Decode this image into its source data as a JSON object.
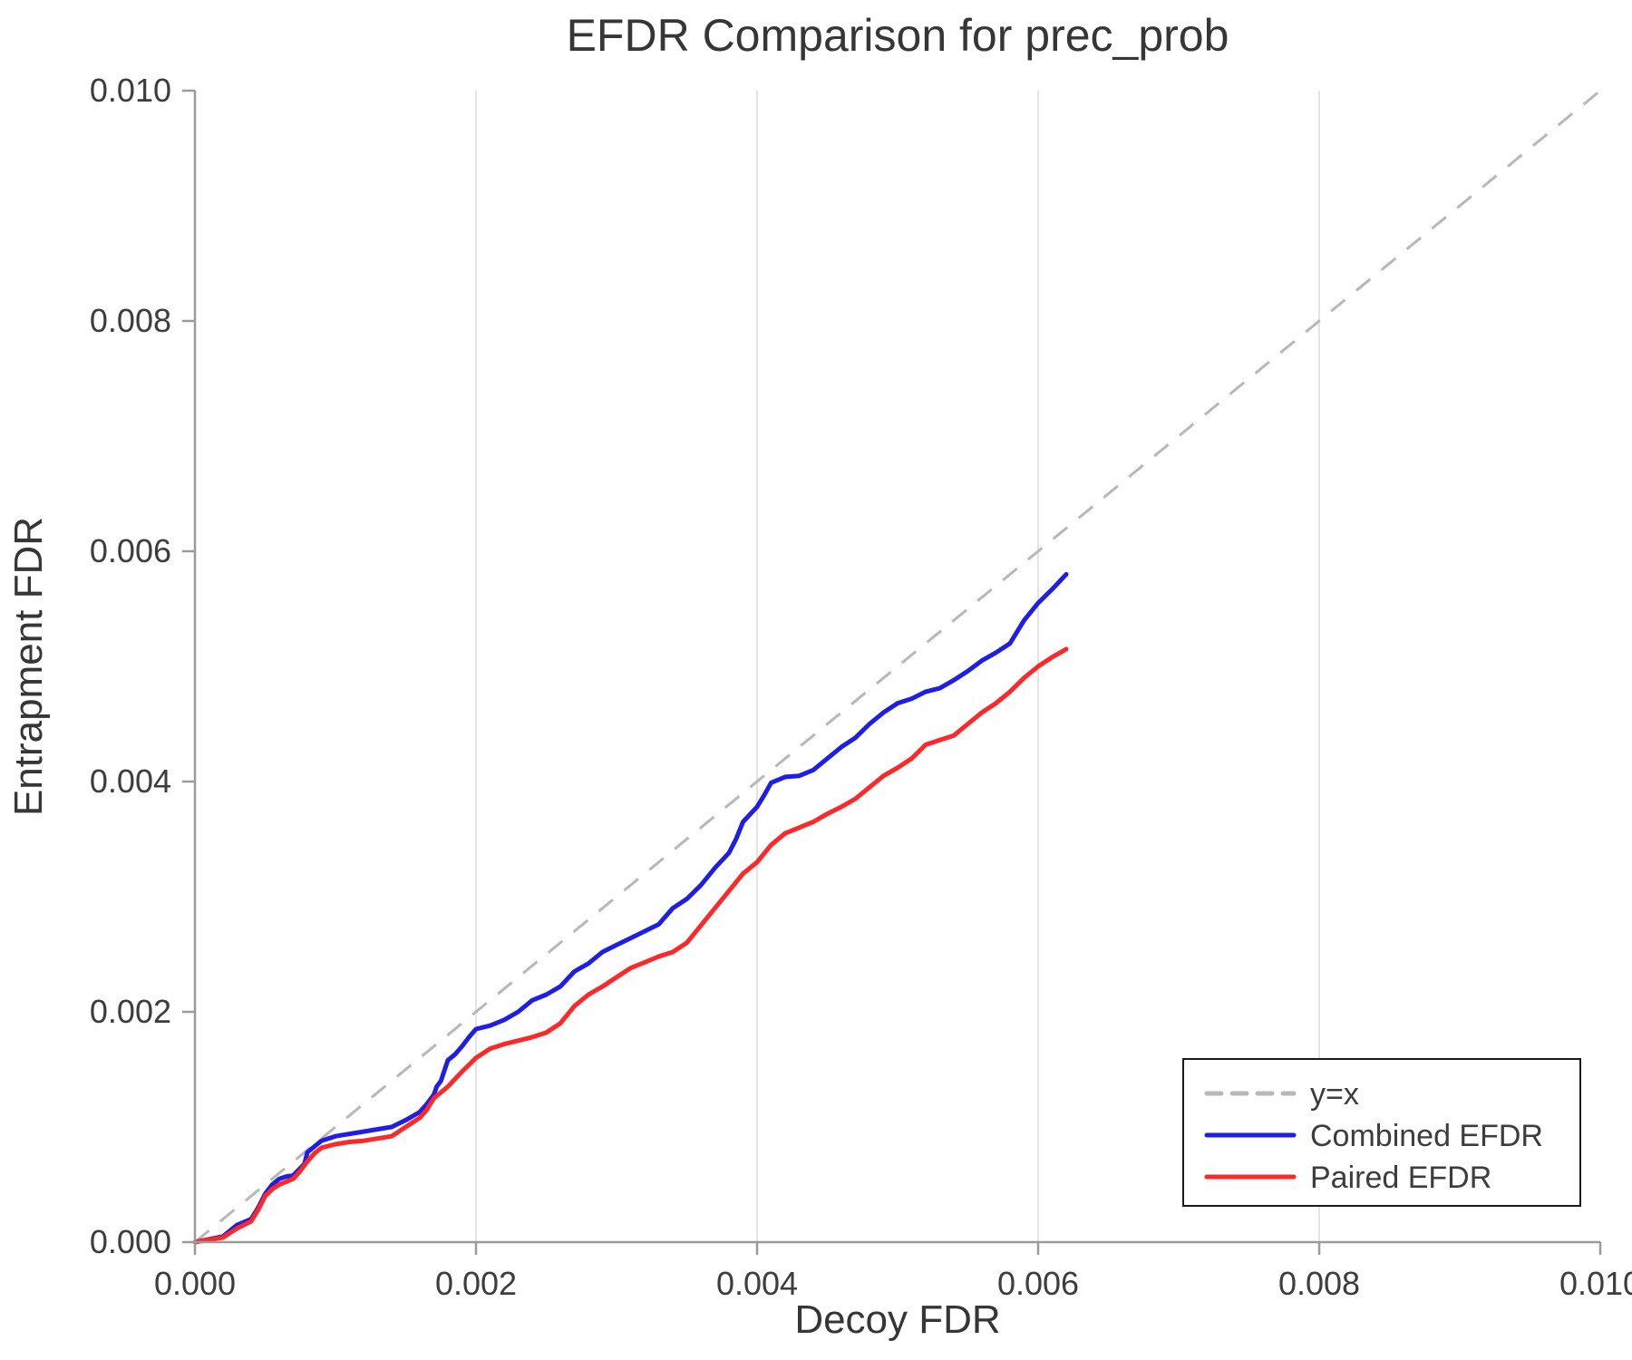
{
  "chart_data": {
    "type": "line",
    "title": "EFDR Comparison for prec_prob",
    "xlabel": "Decoy FDR",
    "ylabel": "Entrapment FDR",
    "xlim": [
      0.0,
      0.01
    ],
    "ylim": [
      0.0,
      0.01
    ],
    "xticks": [
      0.0,
      0.002,
      0.004,
      0.006,
      0.008,
      0.01
    ],
    "yticks": [
      0.0,
      0.002,
      0.004,
      0.006,
      0.008,
      0.01
    ],
    "tick_decimals": 3,
    "grid": "vertical",
    "grid_color": "#e4e4e4",
    "axis_color": "#9b9b9b",
    "text_color": "#3d3d3d",
    "legend_position": "lower right",
    "reference_line": {
      "label": "y=x",
      "color": "#b8b8b8",
      "style": "dashed",
      "from": [
        0.0,
        0.0
      ],
      "to": [
        0.01,
        0.01
      ]
    },
    "series": [
      {
        "name": "Combined EFDR",
        "color": "#1e1ee6",
        "x": [
          0.0,
          0.0002,
          0.00025,
          0.0003,
          0.0004,
          0.00045,
          0.0005,
          0.00055,
          0.0006,
          0.00065,
          0.0007,
          0.00078,
          0.0008,
          0.00085,
          0.0009,
          0.001,
          0.0011,
          0.0012,
          0.0013,
          0.0014,
          0.0015,
          0.0016,
          0.00165,
          0.0017,
          0.00172,
          0.00175,
          0.0018,
          0.00185,
          0.0019,
          0.00195,
          0.002,
          0.0021,
          0.0022,
          0.0023,
          0.0024,
          0.0025,
          0.0026,
          0.0027,
          0.0028,
          0.0029,
          0.003,
          0.0031,
          0.0032,
          0.0033,
          0.0034,
          0.0035,
          0.0036,
          0.0037,
          0.0038,
          0.00385,
          0.0039,
          0.004,
          0.00405,
          0.0041,
          0.0042,
          0.0043,
          0.0044,
          0.0045,
          0.0046,
          0.0047,
          0.0048,
          0.0049,
          0.005,
          0.0051,
          0.0052,
          0.0053,
          0.0054,
          0.0055,
          0.0056,
          0.0057,
          0.0058,
          0.0059,
          0.006,
          0.0061,
          0.0062
        ],
        "y": [
          0.0,
          5e-05,
          0.0001,
          0.00015,
          0.0002,
          0.0003,
          0.00042,
          0.0005,
          0.00055,
          0.00057,
          0.00058,
          0.00068,
          0.00078,
          0.00083,
          0.00088,
          0.00092,
          0.00094,
          0.00096,
          0.00098,
          0.001,
          0.00106,
          0.00113,
          0.0012,
          0.00128,
          0.00135,
          0.0014,
          0.00158,
          0.00163,
          0.0017,
          0.00178,
          0.00185,
          0.00188,
          0.00193,
          0.002,
          0.0021,
          0.00215,
          0.00222,
          0.00235,
          0.00242,
          0.00252,
          0.00258,
          0.00264,
          0.0027,
          0.00276,
          0.0029,
          0.00298,
          0.0031,
          0.00325,
          0.00338,
          0.0035,
          0.00365,
          0.00378,
          0.00388,
          0.00399,
          0.00404,
          0.00405,
          0.0041,
          0.0042,
          0.0043,
          0.00438,
          0.0045,
          0.0046,
          0.00468,
          0.00472,
          0.00478,
          0.00481,
          0.00488,
          0.00496,
          0.00505,
          0.00512,
          0.0052,
          0.0054,
          0.00555,
          0.00567,
          0.0058
        ]
      },
      {
        "name": "Paired EFDR",
        "color": "#ff2828",
        "x": [
          0.0,
          0.0002,
          0.00025,
          0.0003,
          0.0004,
          0.00045,
          0.0005,
          0.00055,
          0.0006,
          0.0007,
          0.00075,
          0.0008,
          0.00085,
          0.0009,
          0.001,
          0.0011,
          0.0012,
          0.0013,
          0.0014,
          0.0015,
          0.0016,
          0.00165,
          0.0017,
          0.0018,
          0.0019,
          0.002,
          0.0021,
          0.0022,
          0.0023,
          0.0024,
          0.0025,
          0.0026,
          0.0027,
          0.0028,
          0.0029,
          0.003,
          0.0031,
          0.0032,
          0.0033,
          0.0034,
          0.0035,
          0.0036,
          0.0037,
          0.0038,
          0.0039,
          0.004,
          0.0041,
          0.0042,
          0.0043,
          0.0044,
          0.0045,
          0.0046,
          0.0047,
          0.0048,
          0.0049,
          0.005,
          0.0051,
          0.0052,
          0.0053,
          0.0054,
          0.0055,
          0.0056,
          0.0057,
          0.0058,
          0.0059,
          0.006,
          0.0061,
          0.0062
        ],
        "y": [
          0.0,
          4e-05,
          8e-05,
          0.00012,
          0.00018,
          0.00028,
          0.0004,
          0.00046,
          0.0005,
          0.00055,
          0.00062,
          0.0007,
          0.00077,
          0.00082,
          0.00085,
          0.00087,
          0.00088,
          0.0009,
          0.00092,
          0.001,
          0.00108,
          0.00115,
          0.00125,
          0.00135,
          0.00148,
          0.0016,
          0.00168,
          0.00172,
          0.00175,
          0.00178,
          0.00182,
          0.0019,
          0.00205,
          0.00215,
          0.00222,
          0.0023,
          0.00238,
          0.00243,
          0.00248,
          0.00252,
          0.0026,
          0.00275,
          0.0029,
          0.00305,
          0.0032,
          0.0033,
          0.00345,
          0.00355,
          0.0036,
          0.00365,
          0.00372,
          0.00378,
          0.00385,
          0.00395,
          0.00405,
          0.00412,
          0.0042,
          0.00432,
          0.00436,
          0.0044,
          0.0045,
          0.0046,
          0.00468,
          0.00478,
          0.0049,
          0.005,
          0.00508,
          0.00515
        ]
      }
    ]
  }
}
